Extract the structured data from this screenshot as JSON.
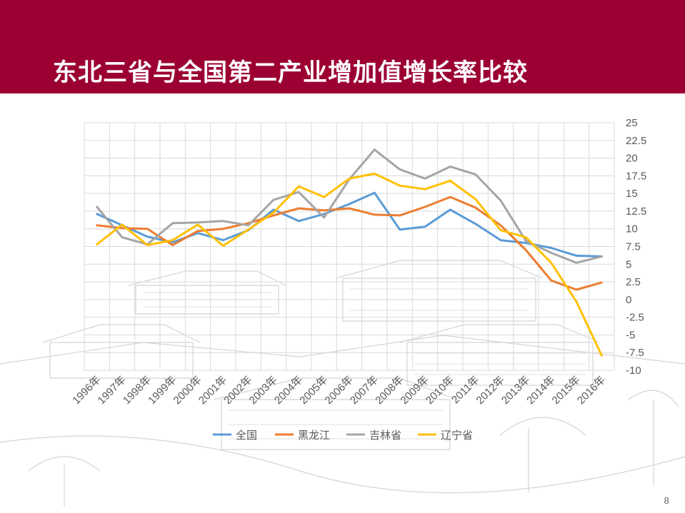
{
  "slide": {
    "title": "东北三省与全国第二产业增加值增长率比较",
    "page_number": "8",
    "header_color": "#9c0033"
  },
  "chart_data": {
    "type": "line",
    "title": "",
    "xlabel": "",
    "ylabel": "",
    "categories": [
      "1996年",
      "1997年",
      "1998年",
      "1999年",
      "2000年",
      "2001年",
      "2002年",
      "2003年",
      "2004年",
      "2005年",
      "2006年",
      "2007年",
      "2008年",
      "2009年",
      "2010年",
      "2011年",
      "2012年",
      "2013年",
      "2014年",
      "2015年",
      "2016年"
    ],
    "ylim": [
      -10,
      25
    ],
    "ytick_step": 2.5,
    "yticks": [
      "25",
      "22.5",
      "20",
      "17.5",
      "15",
      "12.5",
      "10",
      "7.5",
      "5",
      "2.5",
      "0",
      "-2.5",
      "-5",
      "-7.5",
      "-10"
    ],
    "grid": true,
    "y_axis_position": "right",
    "legend_position": "bottom",
    "series": [
      {
        "name": "全国",
        "color": "#5b9bd5",
        "values": [
          12.1,
          10.5,
          8.9,
          8.1,
          9.4,
          8.4,
          9.8,
          12.7,
          11.1,
          12.1,
          13.5,
          15.1,
          9.9,
          10.3,
          12.7,
          10.7,
          8.4,
          8.0,
          7.3,
          6.2,
          6.1
        ]
      },
      {
        "name": "黑龙江",
        "color": "#ed7d31",
        "values": [
          10.5,
          10.1,
          10.0,
          7.7,
          9.7,
          10.0,
          10.8,
          11.9,
          12.9,
          12.6,
          12.9,
          12.0,
          11.9,
          13.1,
          14.5,
          13.0,
          10.5,
          7.0,
          2.7,
          1.4,
          2.4
        ]
      },
      {
        "name": "吉林省",
        "color": "#a5a5a5",
        "values": [
          13.1,
          8.8,
          7.8,
          10.8,
          10.9,
          11.1,
          10.5,
          14.1,
          15.2,
          11.6,
          17.0,
          21.2,
          18.4,
          17.1,
          18.8,
          17.7,
          14.0,
          8.3,
          6.6,
          5.2,
          6.1
        ]
      },
      {
        "name": "辽宁省",
        "color": "#ffc000",
        "values": [
          7.8,
          10.6,
          7.7,
          8.4,
          10.6,
          7.6,
          9.9,
          12.3,
          16.0,
          14.5,
          17.1,
          17.8,
          16.1,
          15.6,
          16.8,
          14.2,
          9.8,
          8.8,
          5.2,
          -0.3,
          -7.9
        ]
      }
    ]
  }
}
